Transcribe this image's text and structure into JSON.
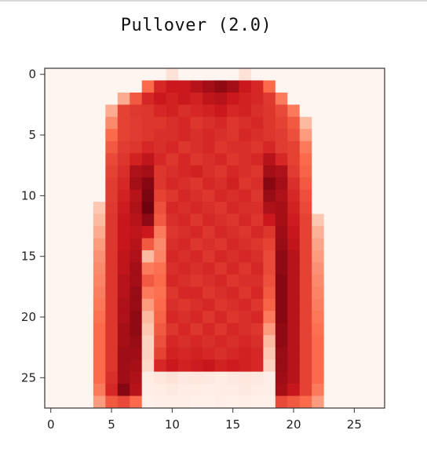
{
  "chart_data": {
    "type": "heatmap",
    "title": "Pullover (2.0)",
    "colormap": "Reds",
    "colors": {
      "low": "#fff5f0",
      "high": "#67000d"
    },
    "grid": false,
    "rows": 28,
    "cols": 28,
    "xlim": [
      -0.5,
      27.5
    ],
    "ylim": [
      27.5,
      -0.5
    ],
    "xticks": [
      {
        "value": 0,
        "label": "0"
      },
      {
        "value": 5,
        "label": "5"
      },
      {
        "value": 10,
        "label": "10"
      },
      {
        "value": 15,
        "label": "15"
      },
      {
        "value": 20,
        "label": "20"
      },
      {
        "value": 25,
        "label": "25"
      }
    ],
    "yticks": [
      {
        "value": 0,
        "label": "0"
      },
      {
        "value": 5,
        "label": "5"
      },
      {
        "value": 10,
        "label": "10"
      },
      {
        "value": 15,
        "label": "15"
      },
      {
        "value": 20,
        "label": "20"
      },
      {
        "value": 25,
        "label": "25"
      }
    ],
    "values": [
      [
        0,
        0,
        0,
        0,
        0,
        0,
        0,
        0,
        0,
        0,
        0.08,
        0,
        0,
        0,
        0,
        0,
        0.08,
        0,
        0,
        0,
        0,
        0,
        0,
        0,
        0,
        0,
        0,
        0
      ],
      [
        0,
        0,
        0,
        0,
        0,
        0,
        0,
        0,
        0.5,
        0.7,
        0.75,
        0.75,
        0.8,
        0.85,
        0.9,
        0.85,
        0.75,
        0.7,
        0.5,
        0,
        0,
        0,
        0,
        0,
        0,
        0,
        0,
        0
      ],
      [
        0,
        0,
        0,
        0,
        0,
        0,
        0.3,
        0.55,
        0.7,
        0.75,
        0.72,
        0.75,
        0.72,
        0.78,
        0.8,
        0.75,
        0.72,
        0.7,
        0.65,
        0.45,
        0,
        0,
        0,
        0,
        0,
        0,
        0,
        0
      ],
      [
        0,
        0,
        0,
        0,
        0,
        0.3,
        0.62,
        0.65,
        0.66,
        0.7,
        0.72,
        0.68,
        0.7,
        0.72,
        0.75,
        0.7,
        0.72,
        0.68,
        0.66,
        0.6,
        0.45,
        0,
        0,
        0,
        0,
        0,
        0,
        0
      ],
      [
        0,
        0,
        0,
        0,
        0,
        0.4,
        0.62,
        0.64,
        0.66,
        0.66,
        0.68,
        0.7,
        0.66,
        0.68,
        0.7,
        0.66,
        0.68,
        0.7,
        0.66,
        0.62,
        0.55,
        0.25,
        0,
        0,
        0,
        0,
        0,
        0
      ],
      [
        0,
        0,
        0,
        0,
        0,
        0.5,
        0.62,
        0.64,
        0.66,
        0.68,
        0.68,
        0.7,
        0.68,
        0.7,
        0.68,
        0.66,
        0.7,
        0.68,
        0.66,
        0.64,
        0.58,
        0.35,
        0,
        0,
        0,
        0,
        0,
        0
      ],
      [
        0,
        0,
        0,
        0,
        0,
        0.55,
        0.64,
        0.66,
        0.7,
        0.68,
        0.7,
        0.66,
        0.68,
        0.7,
        0.66,
        0.68,
        0.68,
        0.66,
        0.7,
        0.64,
        0.62,
        0.45,
        0,
        0,
        0,
        0,
        0,
        0
      ],
      [
        0,
        0,
        0,
        0,
        0,
        0.6,
        0.66,
        0.72,
        0.78,
        0.7,
        0.66,
        0.7,
        0.66,
        0.68,
        0.7,
        0.66,
        0.68,
        0.7,
        0.8,
        0.7,
        0.62,
        0.5,
        0,
        0,
        0,
        0,
        0,
        0
      ],
      [
        0,
        0,
        0,
        0,
        0,
        0.62,
        0.68,
        0.82,
        0.85,
        0.66,
        0.68,
        0.7,
        0.72,
        0.68,
        0.66,
        0.7,
        0.68,
        0.66,
        0.85,
        0.82,
        0.64,
        0.52,
        0,
        0,
        0,
        0,
        0,
        0
      ],
      [
        0,
        0,
        0,
        0,
        0,
        0.64,
        0.7,
        0.85,
        0.92,
        0.66,
        0.7,
        0.68,
        0.66,
        0.7,
        0.68,
        0.72,
        0.66,
        0.68,
        0.92,
        0.85,
        0.68,
        0.55,
        0,
        0,
        0,
        0,
        0,
        0
      ],
      [
        0,
        0,
        0,
        0,
        0,
        0.64,
        0.72,
        0.8,
        0.95,
        0.62,
        0.66,
        0.7,
        0.68,
        0.66,
        0.7,
        0.68,
        0.7,
        0.66,
        0.88,
        0.82,
        0.7,
        0.58,
        0,
        0,
        0,
        0,
        0,
        0
      ],
      [
        0,
        0,
        0,
        0,
        0.2,
        0.65,
        0.74,
        0.82,
        0.98,
        0.58,
        0.7,
        0.68,
        0.7,
        0.68,
        0.66,
        0.7,
        0.68,
        0.68,
        0.82,
        0.84,
        0.72,
        0.6,
        0,
        0,
        0,
        0,
        0,
        0
      ],
      [
        0,
        0,
        0,
        0,
        0.25,
        0.66,
        0.76,
        0.8,
        0.9,
        0.55,
        0.68,
        0.7,
        0.66,
        0.7,
        0.68,
        0.66,
        0.7,
        0.66,
        0.75,
        0.84,
        0.74,
        0.62,
        0.2,
        0,
        0,
        0,
        0,
        0
      ],
      [
        0,
        0,
        0,
        0,
        0.3,
        0.66,
        0.76,
        0.78,
        0.75,
        0.45,
        0.66,
        0.68,
        0.7,
        0.66,
        0.7,
        0.68,
        0.66,
        0.7,
        0.66,
        0.86,
        0.76,
        0.62,
        0.28,
        0,
        0,
        0,
        0,
        0
      ],
      [
        0,
        0,
        0,
        0,
        0.35,
        0.66,
        0.76,
        0.8,
        0.55,
        0.4,
        0.68,
        0.7,
        0.66,
        0.68,
        0.66,
        0.7,
        0.68,
        0.66,
        0.62,
        0.88,
        0.78,
        0.62,
        0.32,
        0,
        0,
        0,
        0,
        0
      ],
      [
        0,
        0,
        0,
        0,
        0.38,
        0.66,
        0.78,
        0.82,
        0.25,
        0.42,
        0.7,
        0.68,
        0.7,
        0.66,
        0.7,
        0.68,
        0.7,
        0.68,
        0.6,
        0.9,
        0.8,
        0.62,
        0.35,
        0,
        0,
        0,
        0,
        0
      ],
      [
        0,
        0,
        0,
        0,
        0.4,
        0.66,
        0.78,
        0.85,
        0.45,
        0.48,
        0.68,
        0.7,
        0.68,
        0.7,
        0.66,
        0.7,
        0.66,
        0.7,
        0.6,
        0.9,
        0.8,
        0.62,
        0.38,
        0,
        0,
        0,
        0,
        0
      ],
      [
        0,
        0,
        0,
        0,
        0.42,
        0.66,
        0.8,
        0.85,
        0.55,
        0.5,
        0.7,
        0.68,
        0.66,
        0.68,
        0.7,
        0.66,
        0.68,
        0.68,
        0.58,
        0.92,
        0.8,
        0.62,
        0.4,
        0,
        0,
        0,
        0,
        0
      ],
      [
        0,
        0,
        0,
        0,
        0.44,
        0.66,
        0.8,
        0.88,
        0.45,
        0.48,
        0.66,
        0.7,
        0.7,
        0.66,
        0.68,
        0.7,
        0.66,
        0.7,
        0.55,
        0.92,
        0.8,
        0.62,
        0.42,
        0,
        0,
        0,
        0,
        0
      ],
      [
        0,
        0,
        0,
        0,
        0.46,
        0.66,
        0.82,
        0.88,
        0.35,
        0.5,
        0.68,
        0.66,
        0.68,
        0.7,
        0.66,
        0.68,
        0.7,
        0.66,
        0.52,
        0.92,
        0.8,
        0.62,
        0.44,
        0,
        0,
        0,
        0,
        0
      ],
      [
        0,
        0,
        0,
        0,
        0.48,
        0.66,
        0.82,
        0.9,
        0.25,
        0.52,
        0.7,
        0.68,
        0.7,
        0.66,
        0.7,
        0.66,
        0.68,
        0.7,
        0.45,
        0.92,
        0.8,
        0.62,
        0.46,
        0,
        0,
        0,
        0,
        0
      ],
      [
        0,
        0,
        0,
        0,
        0.5,
        0.66,
        0.84,
        0.9,
        0.2,
        0.55,
        0.66,
        0.7,
        0.66,
        0.7,
        0.66,
        0.7,
        0.68,
        0.66,
        0.35,
        0.9,
        0.8,
        0.62,
        0.48,
        0,
        0,
        0,
        0,
        0
      ],
      [
        0,
        0,
        0,
        0,
        0.5,
        0.66,
        0.84,
        0.88,
        0.15,
        0.58,
        0.7,
        0.68,
        0.7,
        0.68,
        0.7,
        0.68,
        0.7,
        0.68,
        0.25,
        0.9,
        0.8,
        0.62,
        0.5,
        0,
        0,
        0,
        0,
        0
      ],
      [
        0,
        0,
        0,
        0,
        0.5,
        0.66,
        0.86,
        0.86,
        0.15,
        0.62,
        0.72,
        0.7,
        0.72,
        0.7,
        0.68,
        0.7,
        0.72,
        0.7,
        0.2,
        0.88,
        0.8,
        0.62,
        0.5,
        0,
        0,
        0,
        0,
        0
      ],
      [
        0,
        0,
        0,
        0,
        0.5,
        0.66,
        0.86,
        0.84,
        0.12,
        0.7,
        0.75,
        0.72,
        0.74,
        0.76,
        0.72,
        0.74,
        0.72,
        0.7,
        0.15,
        0.88,
        0.8,
        0.62,
        0.5,
        0,
        0,
        0,
        0,
        0
      ],
      [
        0,
        0,
        0,
        0,
        0.5,
        0.68,
        0.86,
        0.82,
        0.04,
        0.06,
        0.08,
        0.05,
        0.06,
        0.05,
        0.04,
        0.05,
        0.06,
        0.05,
        0.03,
        0.86,
        0.8,
        0.62,
        0.5,
        0,
        0,
        0,
        0,
        0
      ],
      [
        0,
        0,
        0,
        0,
        0.45,
        0.7,
        0.92,
        0.8,
        0.03,
        0.04,
        0.05,
        0.04,
        0.04,
        0.03,
        0.04,
        0.04,
        0.05,
        0.04,
        0.03,
        0.84,
        0.76,
        0.62,
        0.45,
        0,
        0,
        0,
        0,
        0
      ],
      [
        0,
        0,
        0,
        0,
        0.35,
        0.55,
        0.6,
        0.5,
        0.02,
        0.03,
        0.03,
        0.03,
        0.02,
        0.02,
        0.03,
        0.02,
        0.03,
        0.02,
        0.02,
        0.6,
        0.55,
        0.5,
        0.35,
        0,
        0,
        0,
        0,
        0
      ]
    ]
  }
}
